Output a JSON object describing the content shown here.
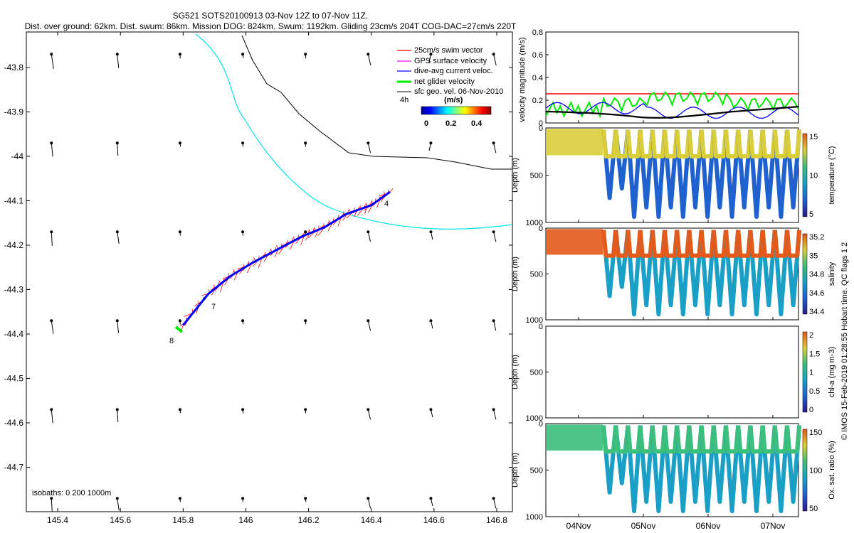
{
  "header": {
    "title_line1": "SG521 SOTS20100913 03-Nov 12Z to 07-Nov 11Z.",
    "title_line2": "Dist. over ground: 62km. Dist. swum: 86km. Mission DOG: 824km. Swum: 1192km. Gliding 23cm/s 204T COG-DAC=27cm/s 220T"
  },
  "colors": {
    "swim": "#ff0000",
    "gps": "#ff00ff",
    "dac": "#0000ff",
    "net": "#00ee00",
    "geo": "#000000",
    "front": "#00e5ee",
    "isobath": "#000000",
    "threshold": "#ff0000"
  },
  "map": {
    "x_ticks": [
      "145.4",
      "145.6",
      "145.8",
      "146",
      "146.2",
      "146.4",
      "146.6",
      "146.8"
    ],
    "y_ticks": [
      "-43.8",
      "-43.9",
      "-44",
      "-44.1",
      "-44.2",
      "-44.3",
      "-44.4",
      "-44.5",
      "-44.6",
      "-44.7"
    ],
    "legend": {
      "items": [
        "25cm/s swim vector",
        "GPS surface velocity",
        "dive-avg current veloc.",
        "net glider velocity",
        "sfc geo. vel. 06-Nov-2010"
      ],
      "time_label": "4h",
      "colorbar_title": "(m/s)",
      "colorbar_ticks": [
        "0",
        "0.2",
        "0.4"
      ]
    },
    "isobaths_label": "isobaths: 0   200   1000m",
    "day_labels": [
      "4",
      "7",
      "8"
    ]
  },
  "panels": {
    "velocity": {
      "ylabel": "velocity magnitude (m/s)",
      "y_ticks": [
        "0",
        "0.2",
        "0.4",
        "0.6",
        "0.8"
      ]
    },
    "temperature": {
      "ylabel": "Depth (m)",
      "y_ticks": [
        "0",
        "500",
        "1000"
      ],
      "cbar_label": "temperature (°C)",
      "cbar_ticks": [
        "15",
        "10",
        "5"
      ]
    },
    "salinity": {
      "ylabel": "Depth (m)",
      "y_ticks": [
        "0",
        "500",
        "1000"
      ],
      "cbar_label": "salinity",
      "cbar_ticks": [
        "35.2",
        "35",
        "34.8",
        "34.6",
        "34.4"
      ]
    },
    "chla": {
      "ylabel": "Depth (m)",
      "y_ticks": [
        "0",
        "500",
        "1000"
      ],
      "cbar_label": "chl-a (mg m-3)",
      "cbar_ticks": [
        "2",
        "1.5",
        "1",
        "0.5",
        "0"
      ]
    },
    "oxygen": {
      "ylabel": "Depth (m)",
      "y_ticks": [
        "0",
        "500",
        "1000"
      ],
      "cbar_label": "Ox. sat. ratio (%)",
      "cbar_ticks": [
        "150",
        "100",
        "50"
      ]
    },
    "x_ticks": [
      "04Nov",
      "05Nov",
      "06Nov",
      "07Nov"
    ]
  },
  "footer_credit": "© IMOS 15-Feb-2019 01:28:55 Hobart time. QC flags 1  2",
  "chart_data": [
    {
      "type": "scatter",
      "title": "SG521 SOTS20100913 03-Nov 12Z to 07-Nov 11Z.",
      "xlabel": "",
      "ylabel": "",
      "xlim": [
        145.3,
        146.85
      ],
      "ylim": [
        -44.8,
        -43.72
      ],
      "series": [
        {
          "name": "dive-avg current veloc.",
          "x": [
            145.8,
            145.88,
            145.95,
            146.02,
            146.1,
            146.18,
            146.25,
            146.32,
            146.4,
            146.46
          ],
          "y": [
            -44.38,
            -44.31,
            -44.27,
            -44.24,
            -44.21,
            -44.18,
            -44.16,
            -44.13,
            -44.11,
            -44.08
          ]
        }
      ],
      "vector_grid": {
        "lon": [
          145.38,
          145.59,
          145.79,
          145.99,
          146.19,
          146.39,
          146.59,
          146.79
        ],
        "lat": [
          -43.77,
          -43.97,
          -44.17,
          -44.37,
          -44.57,
          -44.77
        ]
      },
      "legend_position": "top-right"
    },
    {
      "type": "line",
      "x": [
        "04Nov",
        "05Nov",
        "06Nov",
        "07Nov"
      ],
      "ylabel": "velocity magnitude (m/s)",
      "ylim": [
        0,
        0.8
      ],
      "series": [
        {
          "name": "net glider velocity",
          "values": [
            0.12,
            0.2,
            0.25,
            0.15
          ]
        },
        {
          "name": "dive-avg current veloc.",
          "values": [
            0.2,
            0.12,
            0.08,
            0.12
          ]
        },
        {
          "name": "sfc geo. vel. 06-Nov-2010",
          "values": [
            0.11,
            0.07,
            0.1,
            0.14
          ]
        }
      ],
      "threshold": 0.25
    },
    {
      "type": "scatter",
      "x": [
        "04Nov",
        "05Nov",
        "06Nov",
        "07Nov"
      ],
      "ylabel": "Depth (m)",
      "ylim": [
        1000,
        0
      ],
      "series": [
        {
          "name": "temperature (°C)",
          "color_range": [
            3,
            15
          ]
        },
        {
          "name": "salinity",
          "color_range": [
            34.3,
            35.25
          ]
        },
        {
          "name": "chl-a (mg m-3)",
          "color_range": [
            0,
            2
          ]
        },
        {
          "name": "Ox. sat. ratio (%)",
          "color_range": [
            20,
            170
          ]
        }
      ],
      "max_depth_m": 940
    }
  ]
}
